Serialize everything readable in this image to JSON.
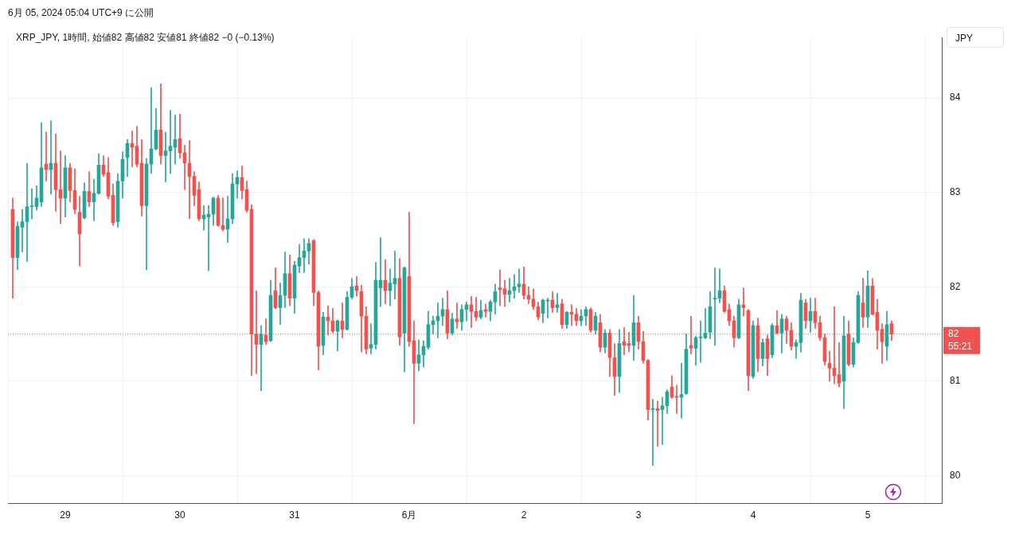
{
  "chart_data": {
    "type": "candlestick",
    "title": "6月 05, 2024 05:04 UTC+9 に公開",
    "subtitle": "XRP_JPY, 1時間, 始値82 高値82 安値81 終値82 −0 (−0.13%)",
    "annotations": [
      "JPY",
      "55:21"
    ],
    "x": [
      "2024-05-28T13:00",
      "2024-05-28T14:00",
      "2024-05-28T15:00",
      "2024-05-28T16:00",
      "2024-05-28T17:00",
      "2024-05-28T18:00",
      "2024-05-28T19:00",
      "2024-05-28T20:00",
      "2024-05-28T21:00",
      "2024-05-28T22:00",
      "2024-05-28T23:00",
      "2024-05-29T00:00",
      "2024-05-29T01:00",
      "2024-05-29T02:00",
      "2024-05-29T03:00",
      "2024-05-29T04:00",
      "2024-05-29T05:00",
      "2024-05-29T06:00",
      "2024-05-29T07:00",
      "2024-05-29T08:00",
      "2024-05-29T09:00",
      "2024-05-29T10:00",
      "2024-05-29T11:00",
      "2024-05-29T12:00",
      "2024-05-29T13:00",
      "2024-05-29T14:00",
      "2024-05-29T15:00",
      "2024-05-29T16:00",
      "2024-05-29T17:00",
      "2024-05-29T18:00",
      "2024-05-29T19:00",
      "2024-05-29T20:00",
      "2024-05-29T21:00",
      "2024-05-29T22:00",
      "2024-05-29T23:00",
      "2024-05-30T00:00",
      "2024-05-30T01:00",
      "2024-05-30T02:00",
      "2024-05-30T03:00",
      "2024-05-30T04:00",
      "2024-05-30T05:00",
      "2024-05-30T06:00",
      "2024-05-30T07:00",
      "2024-05-30T08:00",
      "2024-05-30T09:00",
      "2024-05-30T10:00",
      "2024-05-30T11:00",
      "2024-05-30T12:00",
      "2024-05-30T13:00",
      "2024-05-30T14:00",
      "2024-05-30T15:00",
      "2024-05-30T16:00",
      "2024-05-30T17:00",
      "2024-05-30T18:00",
      "2024-05-30T19:00",
      "2024-05-30T20:00",
      "2024-05-30T21:00",
      "2024-05-30T22:00",
      "2024-05-30T23:00",
      "2024-05-31T00:00",
      "2024-05-31T01:00",
      "2024-05-31T02:00",
      "2024-05-31T03:00",
      "2024-05-31T04:00",
      "2024-05-31T05:00",
      "2024-05-31T06:00",
      "2024-05-31T07:00",
      "2024-05-31T08:00",
      "2024-05-31T09:00",
      "2024-05-31T10:00",
      "2024-05-31T11:00",
      "2024-05-31T12:00",
      "2024-05-31T13:00",
      "2024-05-31T14:00",
      "2024-05-31T15:00",
      "2024-05-31T16:00",
      "2024-05-31T17:00",
      "2024-05-31T18:00",
      "2024-05-31T19:00",
      "2024-05-31T20:00",
      "2024-05-31T21:00",
      "2024-05-31T22:00",
      "2024-05-31T23:00",
      "2024-06-01T00:00",
      "2024-06-01T01:00",
      "2024-06-01T02:00",
      "2024-06-01T03:00",
      "2024-06-01T04:00",
      "2024-06-01T05:00",
      "2024-06-01T06:00",
      "2024-06-01T07:00",
      "2024-06-01T08:00",
      "2024-06-01T09:00",
      "2024-06-01T10:00",
      "2024-06-01T11:00",
      "2024-06-01T12:00",
      "2024-06-01T13:00",
      "2024-06-01T14:00",
      "2024-06-01T15:00",
      "2024-06-01T16:00",
      "2024-06-01T17:00",
      "2024-06-01T18:00",
      "2024-06-01T19:00",
      "2024-06-01T20:00",
      "2024-06-01T21:00",
      "2024-06-01T22:00",
      "2024-06-01T23:00",
      "2024-06-02T00:00",
      "2024-06-02T01:00",
      "2024-06-02T02:00",
      "2024-06-02T03:00",
      "2024-06-02T04:00",
      "2024-06-02T05:00",
      "2024-06-02T06:00",
      "2024-06-02T07:00",
      "2024-06-02T08:00",
      "2024-06-02T09:00",
      "2024-06-02T10:00",
      "2024-06-02T11:00",
      "2024-06-02T12:00",
      "2024-06-02T13:00",
      "2024-06-02T14:00",
      "2024-06-02T15:00",
      "2024-06-02T16:00",
      "2024-06-02T17:00",
      "2024-06-02T18:00",
      "2024-06-02T19:00",
      "2024-06-02T20:00",
      "2024-06-02T21:00",
      "2024-06-02T22:00",
      "2024-06-02T23:00",
      "2024-06-03T00:00",
      "2024-06-03T01:00",
      "2024-06-03T02:00",
      "2024-06-03T03:00",
      "2024-06-03T04:00",
      "2024-06-03T05:00",
      "2024-06-03T06:00",
      "2024-06-03T07:00",
      "2024-06-03T08:00",
      "2024-06-03T09:00",
      "2024-06-03T10:00",
      "2024-06-03T11:00",
      "2024-06-03T12:00",
      "2024-06-03T13:00",
      "2024-06-03T14:00",
      "2024-06-03T15:00",
      "2024-06-03T16:00",
      "2024-06-03T17:00",
      "2024-06-03T18:00",
      "2024-06-03T19:00",
      "2024-06-03T20:00",
      "2024-06-03T21:00",
      "2024-06-03T22:00",
      "2024-06-03T23:00",
      "2024-06-04T00:00",
      "2024-06-04T01:00",
      "2024-06-04T02:00",
      "2024-06-04T03:00",
      "2024-06-04T04:00",
      "2024-06-04T05:00",
      "2024-06-04T06:00",
      "2024-06-04T07:00",
      "2024-06-04T08:00",
      "2024-06-04T09:00",
      "2024-06-04T10:00",
      "2024-06-04T11:00",
      "2024-06-04T12:00",
      "2024-06-04T13:00",
      "2024-06-04T14:00",
      "2024-06-04T15:00",
      "2024-06-04T16:00",
      "2024-06-04T17:00",
      "2024-06-04T18:00",
      "2024-06-04T19:00",
      "2024-06-04T20:00",
      "2024-06-04T21:00",
      "2024-06-04T22:00",
      "2024-06-04T23:00",
      "2024-06-05T00:00",
      "2024-06-05T01:00",
      "2024-06-05T02:00",
      "2024-06-05T03:00",
      "2024-06-05T04:00",
      "2024-06-05T05:00"
    ],
    "ohlc": [
      [
        82.82,
        82.94,
        81.88,
        82.31
      ],
      [
        82.31,
        82.69,
        82.18,
        82.64
      ],
      [
        82.63,
        82.82,
        82.37,
        82.69
      ],
      [
        82.69,
        83.31,
        82.27,
        82.85
      ],
      [
        82.85,
        83.04,
        82.72,
        82.86
      ],
      [
        82.85,
        83.07,
        82.81,
        82.94
      ],
      [
        82.9,
        83.74,
        82.85,
        83.26
      ],
      [
        83.3,
        83.64,
        83.12,
        83.24
      ],
      [
        83.24,
        83.76,
        82.98,
        83.31
      ],
      [
        83.31,
        83.62,
        82.8,
        83.03
      ],
      [
        83.03,
        83.44,
        82.67,
        82.94
      ],
      [
        82.94,
        83.39,
        82.74,
        83.26
      ],
      [
        83.26,
        83.31,
        82.9,
        83.02
      ],
      [
        83.02,
        83.25,
        82.77,
        82.82
      ],
      [
        82.79,
        82.96,
        82.22,
        82.56
      ],
      [
        82.73,
        83.1,
        82.72,
        83.01
      ],
      [
        83.01,
        83.22,
        82.85,
        82.9
      ],
      [
        82.9,
        83.14,
        82.7,
        82.99
      ],
      [
        82.99,
        83.41,
        82.98,
        83.29
      ],
      [
        83.29,
        83.39,
        83.17,
        83.19
      ],
      [
        83.21,
        83.37,
        82.93,
        82.96
      ],
      [
        82.97,
        83.09,
        82.65,
        82.68
      ],
      [
        82.69,
        83.2,
        82.63,
        83.12
      ],
      [
        83.12,
        83.43,
        82.94,
        83.35
      ],
      [
        83.37,
        83.56,
        83.17,
        83.52
      ],
      [
        83.52,
        83.65,
        83.27,
        83.48
      ],
      [
        83.49,
        83.7,
        83.27,
        83.3
      ],
      [
        83.31,
        83.56,
        82.75,
        82.86
      ],
      [
        82.86,
        83.36,
        82.18,
        83.3
      ],
      [
        83.3,
        84.11,
        83.2,
        83.46
      ],
      [
        83.46,
        83.89,
        83.45,
        83.66
      ],
      [
        83.66,
        84.15,
        83.3,
        83.39
      ],
      [
        83.39,
        83.64,
        83.11,
        83.44
      ],
      [
        83.44,
        83.87,
        83.2,
        83.49
      ],
      [
        83.48,
        83.82,
        83.3,
        83.56
      ],
      [
        83.57,
        83.83,
        83.36,
        83.42
      ],
      [
        83.42,
        83.5,
        83.03,
        83.31
      ],
      [
        83.31,
        83.55,
        82.72,
        83.17
      ],
      [
        83.17,
        83.22,
        82.86,
        82.97
      ],
      [
        83.03,
        83.11,
        82.7,
        82.72
      ],
      [
        82.72,
        82.86,
        82.6,
        82.76
      ],
      [
        82.74,
        82.86,
        82.17,
        82.77
      ],
      [
        82.77,
        82.95,
        82.65,
        82.94
      ],
      [
        82.94,
        82.97,
        82.64,
        82.65
      ],
      [
        82.65,
        82.94,
        82.59,
        82.61
      ],
      [
        82.61,
        82.96,
        82.47,
        82.72
      ],
      [
        82.72,
        83.2,
        82.67,
        83.09
      ],
      [
        83.09,
        83.23,
        82.94,
        83.16
      ],
      [
        83.16,
        83.28,
        82.93,
        83.02
      ],
      [
        83.03,
        83.12,
        82.79,
        82.81
      ],
      [
        82.82,
        82.87,
        81.06,
        81.5
      ],
      [
        81.5,
        81.96,
        81.08,
        81.39
      ],
      [
        81.39,
        81.59,
        80.9,
        81.5
      ],
      [
        81.49,
        81.66,
        81.39,
        81.42
      ],
      [
        81.43,
        82.07,
        81.42,
        81.91
      ],
      [
        81.96,
        82.2,
        81.77,
        81.78
      ],
      [
        81.78,
        82.04,
        81.6,
        81.91
      ],
      [
        81.91,
        82.37,
        81.78,
        82.14
      ],
      [
        82.14,
        82.34,
        81.8,
        81.88
      ],
      [
        81.88,
        82.27,
        81.72,
        82.23
      ],
      [
        82.22,
        82.45,
        82.15,
        82.31
      ],
      [
        82.31,
        82.51,
        82.15,
        82.38
      ],
      [
        82.38,
        82.51,
        82.24,
        82.46
      ],
      [
        82.49,
        82.5,
        81.8,
        81.94
      ],
      [
        81.94,
        81.96,
        81.12,
        81.37
      ],
      [
        81.38,
        81.73,
        81.28,
        81.68
      ],
      [
        81.68,
        81.8,
        81.49,
        81.64
      ],
      [
        81.64,
        81.77,
        81.51,
        81.53
      ],
      [
        81.53,
        81.65,
        81.32,
        81.64
      ],
      [
        81.64,
        81.83,
        81.46,
        81.55
      ],
      [
        81.55,
        81.95,
        81.54,
        81.89
      ],
      [
        81.89,
        82.09,
        81.87,
        82.0
      ],
      [
        82.01,
        82.11,
        81.9,
        81.96
      ],
      [
        81.95,
        82.02,
        81.31,
        81.69
      ],
      [
        81.69,
        81.79,
        81.29,
        81.34
      ],
      [
        81.35,
        81.61,
        81.29,
        81.39
      ],
      [
        81.39,
        82.26,
        81.34,
        82.07
      ],
      [
        81.99,
        82.52,
        81.79,
        82.07
      ],
      [
        82.07,
        82.29,
        81.82,
        81.96
      ],
      [
        81.96,
        82.19,
        81.8,
        82.04
      ],
      [
        82.03,
        82.38,
        81.87,
        82.09
      ],
      [
        82.09,
        82.3,
        81.38,
        81.47
      ],
      [
        81.51,
        82.21,
        81.1,
        82.2
      ],
      [
        82.11,
        82.79,
        81.37,
        81.42
      ],
      [
        81.43,
        81.64,
        80.55,
        81.19
      ],
      [
        81.19,
        81.44,
        81.11,
        81.28
      ],
      [
        81.28,
        81.43,
        81.15,
        81.37
      ],
      [
        81.36,
        81.74,
        81.34,
        81.6
      ],
      [
        81.6,
        81.69,
        81.5,
        81.64
      ],
      [
        81.64,
        81.83,
        81.46,
        81.69
      ],
      [
        81.69,
        81.88,
        81.59,
        81.76
      ],
      [
        81.76,
        81.96,
        81.45,
        81.51
      ],
      [
        81.51,
        81.72,
        81.49,
        81.66
      ],
      [
        81.66,
        81.83,
        81.56,
        81.63
      ],
      [
        81.63,
        81.81,
        81.54,
        81.76
      ],
      [
        81.76,
        81.84,
        81.64,
        81.81
      ],
      [
        81.81,
        81.9,
        81.57,
        81.74
      ],
      [
        81.74,
        81.89,
        81.64,
        81.68
      ],
      [
        81.68,
        81.86,
        81.66,
        81.75
      ],
      [
        81.76,
        81.82,
        81.68,
        81.74
      ],
      [
        81.74,
        81.86,
        81.64,
        81.84
      ],
      [
        81.84,
        82.03,
        81.71,
        81.95
      ],
      [
        81.99,
        82.18,
        81.8,
        81.97
      ],
      [
        81.98,
        82.07,
        81.79,
        81.92
      ],
      [
        81.92,
        82.09,
        81.84,
        81.96
      ],
      [
        81.96,
        82.13,
        81.88,
        82.0
      ],
      [
        82.0,
        82.19,
        81.94,
        82.03
      ],
      [
        82.03,
        82.21,
        81.87,
        81.91
      ],
      [
        81.91,
        82.0,
        81.82,
        81.87
      ],
      [
        81.87,
        81.98,
        81.76,
        81.79
      ],
      [
        81.79,
        81.84,
        81.65,
        81.68
      ],
      [
        81.72,
        81.87,
        81.62,
        81.86
      ],
      [
        81.85,
        81.88,
        81.67,
        81.86
      ],
      [
        81.86,
        81.95,
        81.73,
        81.78
      ],
      [
        81.78,
        81.93,
        81.73,
        81.81
      ],
      [
        81.82,
        81.87,
        81.56,
        81.6
      ],
      [
        81.6,
        81.74,
        81.56,
        81.73
      ],
      [
        81.73,
        81.81,
        81.59,
        81.71
      ],
      [
        81.71,
        81.77,
        81.59,
        81.64
      ],
      [
        81.64,
        81.76,
        81.59,
        81.69
      ],
      [
        81.69,
        81.79,
        81.59,
        81.76
      ],
      [
        81.76,
        81.78,
        81.52,
        81.54
      ],
      [
        81.54,
        81.73,
        81.5,
        81.69
      ],
      [
        81.62,
        81.71,
        81.31,
        81.36
      ],
      [
        81.36,
        81.55,
        81.3,
        81.51
      ],
      [
        81.51,
        81.55,
        81.05,
        81.25
      ],
      [
        81.25,
        81.4,
        80.85,
        81.05
      ],
      [
        81.05,
        81.55,
        80.88,
        81.4
      ],
      [
        81.42,
        81.57,
        81.28,
        81.38
      ],
      [
        81.4,
        81.52,
        81.31,
        81.38
      ],
      [
        81.38,
        81.91,
        81.22,
        81.62
      ],
      [
        81.62,
        81.69,
        81.34,
        81.42
      ],
      [
        81.42,
        81.53,
        81.19,
        81.22
      ],
      [
        81.22,
        81.23,
        80.59,
        80.7
      ],
      [
        80.7,
        80.81,
        80.11,
        80.71
      ],
      [
        80.71,
        80.79,
        80.31,
        80.69
      ],
      [
        80.7,
        80.83,
        80.33,
        80.74
      ],
      [
        80.74,
        80.91,
        80.66,
        80.89
      ],
      [
        80.94,
        81.06,
        80.82,
        80.83
      ],
      [
        80.84,
        80.96,
        80.66,
        80.83
      ],
      [
        80.83,
        81.19,
        80.61,
        80.86
      ],
      [
        80.87,
        81.5,
        80.86,
        81.34
      ],
      [
        81.38,
        81.69,
        81.29,
        81.35
      ],
      [
        81.35,
        81.48,
        81.17,
        81.46
      ],
      [
        81.46,
        81.64,
        81.2,
        81.47
      ],
      [
        81.46,
        81.77,
        81.45,
        81.51
      ],
      [
        81.52,
        81.95,
        81.45,
        81.79
      ],
      [
        81.87,
        82.2,
        81.38,
        81.88
      ],
      [
        81.88,
        82.19,
        81.83,
        81.96
      ],
      [
        81.96,
        82.01,
        81.73,
        81.74
      ],
      [
        81.76,
        81.82,
        81.59,
        81.64
      ],
      [
        81.64,
        81.69,
        81.36,
        81.46
      ],
      [
        81.46,
        81.87,
        81.45,
        81.81
      ],
      [
        81.81,
        81.99,
        81.69,
        81.78
      ],
      [
        81.75,
        81.76,
        80.9,
        81.06
      ],
      [
        81.05,
        81.64,
        81.03,
        81.59
      ],
      [
        81.59,
        81.67,
        81.1,
        81.24
      ],
      [
        81.24,
        81.45,
        81.16,
        81.41
      ],
      [
        81.45,
        81.49,
        81.06,
        81.24
      ],
      [
        81.28,
        81.61,
        81.25,
        81.59
      ],
      [
        81.59,
        81.75,
        81.5,
        81.51
      ],
      [
        81.51,
        81.71,
        81.3,
        81.66
      ],
      [
        81.66,
        81.69,
        81.4,
        81.54
      ],
      [
        81.54,
        81.62,
        81.33,
        81.37
      ],
      [
        81.37,
        81.44,
        81.24,
        81.41
      ],
      [
        81.41,
        81.93,
        81.31,
        81.86
      ],
      [
        81.83,
        81.87,
        81.56,
        81.64
      ],
      [
        81.64,
        81.88,
        81.52,
        81.74
      ],
      [
        81.74,
        81.88,
        81.56,
        81.62
      ],
      [
        81.62,
        81.69,
        81.43,
        81.46
      ],
      [
        81.46,
        81.5,
        81.17,
        81.21
      ],
      [
        81.19,
        81.32,
        81.0,
        81.14
      ],
      [
        81.14,
        81.79,
        80.97,
        81.06
      ],
      [
        81.07,
        81.41,
        80.94,
        80.98
      ],
      [
        81.0,
        81.69,
        80.71,
        81.48
      ],
      [
        81.5,
        81.64,
        81.16,
        81.18
      ],
      [
        81.18,
        81.46,
        81.15,
        81.41
      ],
      [
        81.41,
        81.95,
        81.4,
        81.91
      ],
      [
        81.83,
        82.09,
        81.57,
        81.68
      ],
      [
        81.68,
        82.17,
        81.57,
        82.01
      ],
      [
        82.01,
        82.09,
        81.7,
        81.71
      ],
      [
        81.73,
        81.87,
        81.34,
        81.54
      ],
      [
        81.55,
        81.61,
        81.19,
        81.42
      ],
      [
        81.37,
        81.74,
        81.22,
        81.6
      ],
      [
        81.61,
        81.64,
        81.43,
        81.5
      ]
    ],
    "colors": [
      "#ef5350",
      "#26a69a",
      "#26a69a",
      "#26a69a",
      "#26a69a",
      "#26a69a",
      "#26a69a",
      "#ef5350",
      "#26a69a",
      "#ef5350",
      "#ef5350",
      "#26a69a",
      "#ef5350",
      "#ef5350",
      "#ef5350",
      "#26a69a",
      "#ef5350",
      "#26a69a",
      "#26a69a",
      "#ef5350",
      "#ef5350",
      "#ef5350",
      "#26a69a",
      "#26a69a",
      "#26a69a",
      "#ef5350",
      "#ef5350",
      "#ef5350",
      "#26a69a",
      "#26a69a",
      "#26a69a",
      "#ef5350",
      "#26a69a",
      "#26a69a",
      "#26a69a",
      "#ef5350",
      "#ef5350",
      "#ef5350",
      "#ef5350",
      "#ef5350",
      "#26a69a",
      "#26a69a",
      "#26a69a",
      "#ef5350",
      "#ef5350",
      "#26a69a",
      "#26a69a",
      "#26a69a",
      "#ef5350",
      "#ef5350",
      "#ef5350",
      "#ef5350",
      "#26a69a",
      "#ef5350",
      "#26a69a",
      "#ef5350",
      "#26a69a",
      "#26a69a",
      "#ef5350",
      "#26a69a",
      "#26a69a",
      "#26a69a",
      "#26a69a",
      "#ef5350",
      "#ef5350",
      "#26a69a",
      "#ef5350",
      "#ef5350",
      "#26a69a",
      "#ef5350",
      "#26a69a",
      "#26a69a",
      "#ef5350",
      "#ef5350",
      "#ef5350",
      "#26a69a",
      "#26a69a",
      "#26a69a",
      "#ef5350",
      "#26a69a",
      "#26a69a",
      "#ef5350",
      "#26a69a",
      "#ef5350",
      "#ef5350",
      "#26a69a",
      "#26a69a",
      "#26a69a",
      "#26a69a",
      "#26a69a",
      "#26a69a",
      "#ef5350",
      "#26a69a",
      "#ef5350",
      "#26a69a",
      "#26a69a",
      "#ef5350",
      "#ef5350",
      "#26a69a",
      "#ef5350",
      "#26a69a",
      "#26a69a",
      "#ef5350",
      "#ef5350",
      "#26a69a",
      "#26a69a",
      "#26a69a",
      "#ef5350",
      "#ef5350",
      "#ef5350",
      "#ef5350",
      "#26a69a",
      "#26a69a",
      "#ef5350",
      "#26a69a",
      "#ef5350",
      "#26a69a",
      "#ef5350",
      "#ef5350",
      "#26a69a",
      "#26a69a",
      "#ef5350",
      "#26a69a",
      "#ef5350",
      "#26a69a",
      "#ef5350",
      "#ef5350",
      "#26a69a",
      "#ef5350",
      "#ef5350",
      "#26a69a",
      "#ef5350",
      "#ef5350",
      "#ef5350",
      "#26a69a",
      "#ef5350",
      "#26a69a",
      "#26a69a",
      "#ef5350",
      "#ef5350",
      "#26a69a",
      "#26a69a",
      "#ef5350",
      "#26a69a",
      "#26a69a",
      "#26a69a",
      "#26a69a",
      "#26a69a",
      "#26a69a",
      "#ef5350",
      "#ef5350",
      "#ef5350",
      "#26a69a",
      "#ef5350",
      "#ef5350",
      "#26a69a",
      "#ef5350",
      "#26a69a",
      "#ef5350",
      "#26a69a",
      "#ef5350",
      "#26a69a",
      "#ef5350",
      "#ef5350",
      "#26a69a",
      "#26a69a",
      "#ef5350",
      "#26a69a",
      "#ef5350",
      "#ef5350",
      "#ef5350",
      "#ef5350",
      "#ef5350",
      "#ef5350",
      "#26a69a",
      "#ef5350",
      "#26a69a",
      "#26a69a",
      "#ef5350",
      "#26a69a",
      "#ef5350",
      "#ef5350",
      "#ef5350",
      "#26a69a",
      "#ef5350"
    ],
    "xlim": [
      "2024-05-28T12:00",
      "2024-06-05T15:30"
    ],
    "xticks": [
      {
        "value": "2024-05-29",
        "label": "29"
      },
      {
        "value": "2024-05-30",
        "label": "30"
      },
      {
        "value": "2024-05-31",
        "label": "31"
      },
      {
        "value": "2024-06-01",
        "label": "6月"
      },
      {
        "value": "2024-06-02",
        "label": "2"
      },
      {
        "value": "2024-06-03",
        "label": "3"
      },
      {
        "value": "2024-06-04",
        "label": "4"
      },
      {
        "value": "2024-06-05",
        "label": "5"
      }
    ],
    "ylim": [
      79.71,
      84.64
    ],
    "yticks": [
      80,
      81,
      82,
      83,
      84
    ],
    "grid": true,
    "ref_lines": [
      {
        "axis": "y",
        "value": 81.5,
        "label": "82",
        "color": "#ef5350",
        "line_style": "dotted"
      }
    ]
  }
}
